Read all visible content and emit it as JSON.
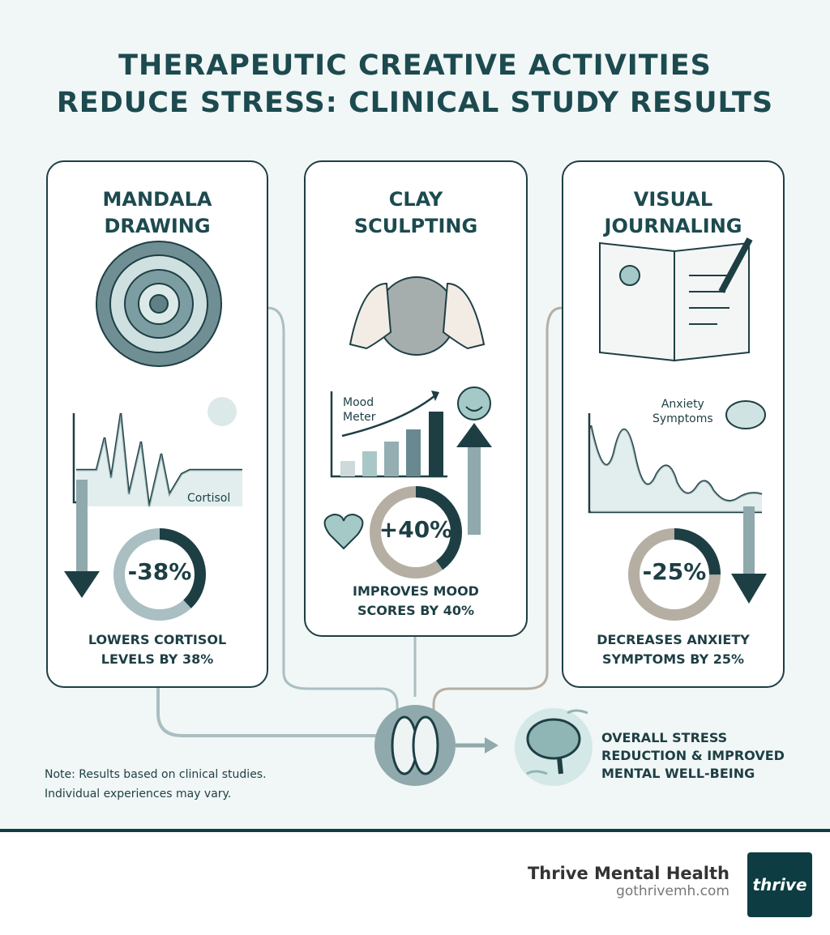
{
  "title": {
    "line1": "THERAPEUTIC CREATIVE ACTIVITIES",
    "line2": "REDUCE STRESS: CLINICAL STUDY RESULTS"
  },
  "cards": [
    {
      "title1": "MANDALA",
      "title2": "DRAWING",
      "chart_label": "Cortisol",
      "percent": "-38%",
      "fill": 0.38,
      "direction": "down",
      "caption1": "LOWERS CORTISOL",
      "caption2": "LEVELS BY 38%"
    },
    {
      "title1": "CLAY",
      "title2": "SCULPTING",
      "chart_label1": "Mood",
      "chart_label2": "Meter",
      "percent": "+40%",
      "fill": 0.4,
      "direction": "up",
      "caption1": "IMPROVES MOOD",
      "caption2": "SCORES BY 40%"
    },
    {
      "title1": "VISUAL",
      "title2": "JOURNALING",
      "chart_label1": "Anxiety",
      "chart_label2": "Symptoms",
      "percent": "-25%",
      "fill": 0.25,
      "direction": "down",
      "caption1": "DECREASES ANXIETY",
      "caption2": "SYMPTOMS BY 25%"
    }
  ],
  "result": {
    "line1": "OVERALL STRESS",
    "line2": "REDUCTION & IMPROVED",
    "line3": "MENTAL WELL-BEING"
  },
  "note": {
    "line1": "Note: Results based on clinical studies.",
    "line2": "Individual experiences may vary."
  },
  "footer": {
    "brand": "Thrive Mental Health",
    "url": "gothrivemh.com",
    "logo_text": "thrive"
  },
  "colors": {
    "dark_teal": "#1d3f44",
    "muted_teal": "#8fa9ad",
    "light_teal": "#cfe3e2",
    "warm_gray": "#b5aea3"
  }
}
